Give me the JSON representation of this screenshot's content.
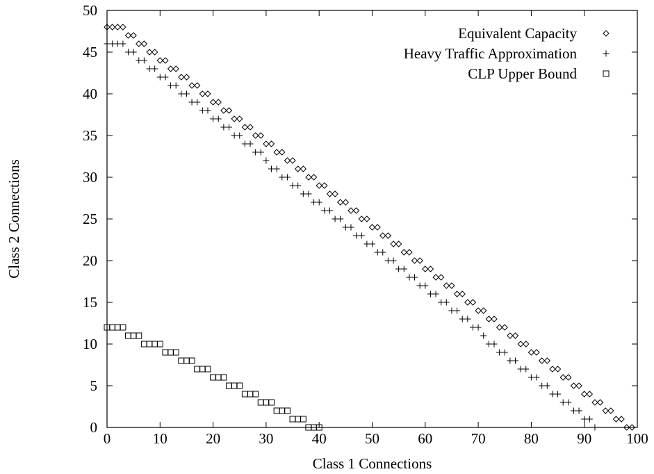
{
  "chart_data": {
    "type": "scatter",
    "title": "",
    "xlabel": "Class 1 Connections",
    "ylabel": "Class 2 Connections",
    "xlim": [
      0,
      100
    ],
    "ylim": [
      0,
      50
    ],
    "xticks": [
      0,
      10,
      20,
      30,
      40,
      50,
      60,
      70,
      80,
      90,
      100
    ],
    "yticks": [
      0,
      5,
      10,
      15,
      20,
      25,
      30,
      35,
      40,
      45,
      50
    ],
    "grid": false,
    "legend_position": "top-right",
    "series": [
      {
        "name": "Equivalent Capacity",
        "marker": "diamond",
        "x": [
          0,
          1,
          2,
          3,
          4,
          5,
          6,
          7,
          8,
          9,
          10,
          11,
          12,
          13,
          14,
          15,
          16,
          17,
          18,
          19,
          20,
          21,
          22,
          23,
          24,
          25,
          26,
          27,
          28,
          29,
          30,
          31,
          32,
          33,
          34,
          35,
          36,
          37,
          38,
          39,
          40,
          41,
          42,
          43,
          44,
          45,
          46,
          47,
          48,
          49,
          50,
          51,
          52,
          53,
          54,
          55,
          56,
          57,
          58,
          59,
          60,
          61,
          62,
          63,
          64,
          65,
          66,
          67,
          68,
          69,
          70,
          71,
          72,
          73,
          74,
          75,
          76,
          77,
          78,
          79,
          80,
          81,
          82,
          83,
          84,
          85,
          86,
          87,
          88,
          89,
          90,
          91,
          92,
          93,
          94,
          95,
          96,
          97,
          98,
          99
        ],
        "y": [
          48,
          48,
          48,
          48,
          47,
          47,
          46,
          46,
          45,
          45,
          44,
          44,
          43,
          43,
          42,
          42,
          41,
          41,
          40,
          40,
          39,
          39,
          38,
          38,
          37,
          37,
          36,
          36,
          35,
          35,
          34,
          34,
          33,
          33,
          32,
          32,
          31,
          31,
          30,
          30,
          29,
          29,
          28,
          28,
          27,
          27,
          26,
          26,
          25,
          25,
          24,
          24,
          23,
          23,
          22,
          22,
          21,
          21,
          20,
          20,
          19,
          19,
          18,
          18,
          17,
          17,
          16,
          16,
          15,
          15,
          14,
          14,
          13,
          13,
          12,
          12,
          11,
          11,
          10,
          10,
          9,
          9,
          8,
          8,
          7,
          7,
          6,
          6,
          5,
          5,
          4,
          4,
          3,
          3,
          2,
          2,
          1,
          1,
          0,
          0
        ]
      },
      {
        "name": "Heavy Traffic Approximation",
        "marker": "plus",
        "x": [
          0,
          1,
          2,
          3,
          4,
          5,
          6,
          7,
          8,
          9,
          10,
          11,
          12,
          13,
          14,
          15,
          16,
          17,
          18,
          19,
          20,
          21,
          22,
          23,
          24,
          25,
          26,
          27,
          28,
          29,
          30,
          31,
          32,
          33,
          34,
          35,
          36,
          37,
          38,
          39,
          40,
          41,
          42,
          43,
          44,
          45,
          46,
          47,
          48,
          49,
          50,
          51,
          52,
          53,
          54,
          55,
          56,
          57,
          58,
          59,
          60,
          61,
          62,
          63,
          64,
          65,
          66,
          67,
          68,
          69,
          70,
          71,
          72,
          73,
          74,
          75,
          76,
          77,
          78,
          79,
          80,
          81,
          82,
          83,
          84,
          85,
          86,
          87,
          88,
          89,
          90,
          91,
          92
        ],
        "y": [
          46,
          46,
          46,
          46,
          45,
          45,
          44,
          44,
          43,
          43,
          42,
          42,
          41,
          41,
          40,
          40,
          39,
          39,
          38,
          38,
          37,
          37,
          36,
          36,
          35,
          35,
          34,
          34,
          33,
          33,
          32,
          31,
          31,
          30,
          30,
          29,
          29,
          28,
          28,
          27,
          27,
          26,
          26,
          25,
          25,
          24,
          24,
          23,
          23,
          22,
          22,
          21,
          21,
          20,
          20,
          19,
          19,
          18,
          18,
          17,
          17,
          16,
          16,
          15,
          15,
          14,
          14,
          13,
          13,
          12,
          12,
          11,
          10,
          10,
          9,
          9,
          8,
          8,
          7,
          7,
          6,
          6,
          5,
          5,
          4,
          4,
          3,
          3,
          2,
          2,
          1,
          1,
          0
        ]
      },
      {
        "name": "CLP Upper Bound",
        "marker": "square",
        "x": [
          0,
          1,
          2,
          3,
          4,
          5,
          6,
          7,
          8,
          9,
          10,
          11,
          12,
          13,
          14,
          15,
          16,
          17,
          18,
          19,
          20,
          21,
          22,
          23,
          24,
          25,
          26,
          27,
          28,
          29,
          30,
          31,
          32,
          33,
          34,
          35,
          36,
          37,
          38,
          39,
          40
        ],
        "y": [
          12,
          12,
          12,
          12,
          11,
          11,
          11,
          10,
          10,
          10,
          10,
          9,
          9,
          9,
          8,
          8,
          8,
          7,
          7,
          7,
          6,
          6,
          6,
          5,
          5,
          5,
          4,
          4,
          4,
          3,
          3,
          3,
          2,
          2,
          2,
          1,
          1,
          1,
          0,
          0,
          0
        ]
      }
    ]
  }
}
